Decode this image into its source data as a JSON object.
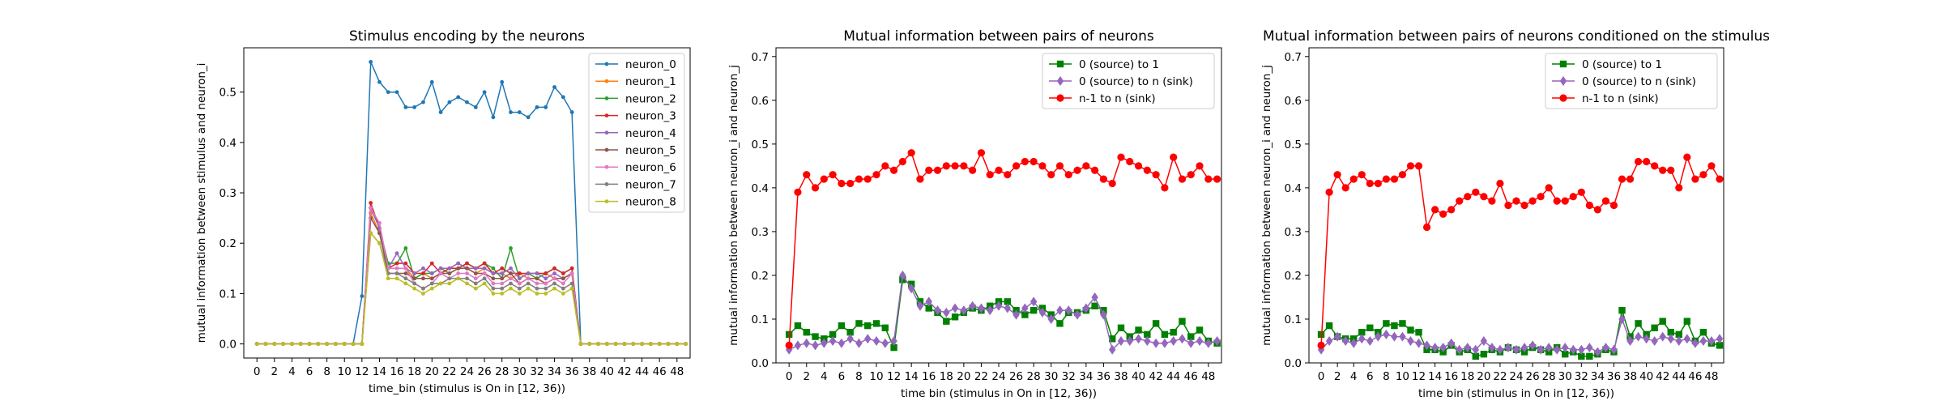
{
  "chart_data": [
    {
      "type": "line",
      "title": "Stimulus encoding by the neurons",
      "xlabel": "time_bin (stimulus is On in [12, 36))",
      "ylabel": "mutual information between stimulus and neuron_i",
      "xlim": [
        -1.5,
        49.5
      ],
      "ylim": [
        -0.028,
        0.588
      ],
      "xticks": [
        0,
        2,
        4,
        6,
        8,
        10,
        12,
        14,
        16,
        18,
        20,
        22,
        24,
        26,
        28,
        30,
        32,
        34,
        36,
        38,
        40,
        42,
        44,
        46,
        48
      ],
      "yticks": [
        0.0,
        0.1,
        0.2,
        0.3,
        0.4,
        0.5
      ],
      "ytick_labels": [
        "0.0",
        "0.1",
        "0.2",
        "0.3",
        "0.4",
        "0.5"
      ],
      "legend_position": "upper right",
      "series": [
        {
          "name": "neuron_0",
          "color": "#1f77b4",
          "marker": "dot",
          "values": [
            0,
            0,
            0,
            0,
            0,
            0,
            0,
            0,
            0,
            0,
            0,
            0,
            0.095,
            0.56,
            0.52,
            0.5,
            0.5,
            0.47,
            0.47,
            0.48,
            0.52,
            0.46,
            0.48,
            0.49,
            0.48,
            0.47,
            0.5,
            0.45,
            0.52,
            0.46,
            0.46,
            0.45,
            0.47,
            0.47,
            0.51,
            0.49,
            0.46,
            0,
            0,
            0,
            0,
            0,
            0,
            0,
            0,
            0,
            0,
            0,
            0,
            0
          ]
        },
        {
          "name": "neuron_1",
          "color": "#ff7f0e",
          "marker": "dot",
          "values": [
            0,
            0,
            0,
            0,
            0,
            0,
            0,
            0,
            0,
            0,
            0,
            0,
            0,
            0.26,
            0.22,
            0.15,
            0.15,
            0.15,
            0.13,
            0.14,
            0.13,
            0.14,
            0.15,
            0.16,
            0.15,
            0.14,
            0.15,
            0.14,
            0.14,
            0.13,
            0.14,
            0.13,
            0.13,
            0.14,
            0.13,
            0.13,
            0.14,
            0,
            0,
            0,
            0,
            0,
            0,
            0,
            0,
            0,
            0,
            0,
            0,
            0
          ]
        },
        {
          "name": "neuron_2",
          "color": "#2ca02c",
          "marker": "dot",
          "values": [
            0,
            0,
            0,
            0,
            0,
            0,
            0,
            0,
            0,
            0,
            0,
            0,
            0,
            0.27,
            0.23,
            0.16,
            0.16,
            0.19,
            0.13,
            0.14,
            0.14,
            0.15,
            0.14,
            0.15,
            0.16,
            0.15,
            0.16,
            0.15,
            0.13,
            0.19,
            0.13,
            0.14,
            0.13,
            0.14,
            0.15,
            0.14,
            0.15,
            0,
            0,
            0,
            0,
            0,
            0,
            0,
            0,
            0,
            0,
            0,
            0,
            0
          ]
        },
        {
          "name": "neuron_3",
          "color": "#d62728",
          "marker": "dot",
          "values": [
            0,
            0,
            0,
            0,
            0,
            0,
            0,
            0,
            0,
            0,
            0,
            0,
            0,
            0.28,
            0.23,
            0.15,
            0.16,
            0.16,
            0.14,
            0.14,
            0.16,
            0.14,
            0.15,
            0.15,
            0.16,
            0.15,
            0.16,
            0.14,
            0.15,
            0.14,
            0.14,
            0.14,
            0.14,
            0.14,
            0.15,
            0.14,
            0.15,
            0,
            0,
            0,
            0,
            0,
            0,
            0,
            0,
            0,
            0,
            0,
            0,
            0
          ]
        },
        {
          "name": "neuron_4",
          "color": "#9467bd",
          "marker": "dot",
          "values": [
            0,
            0,
            0,
            0,
            0,
            0,
            0,
            0,
            0,
            0,
            0,
            0,
            0,
            0.27,
            0.23,
            0.15,
            0.18,
            0.15,
            0.14,
            0.15,
            0.14,
            0.15,
            0.15,
            0.16,
            0.15,
            0.15,
            0.15,
            0.14,
            0.14,
            0.15,
            0.13,
            0.14,
            0.14,
            0.13,
            0.14,
            0.13,
            0.14,
            0,
            0,
            0,
            0,
            0,
            0,
            0,
            0,
            0,
            0,
            0,
            0,
            0
          ]
        },
        {
          "name": "neuron_5",
          "color": "#8c564b",
          "marker": "dot",
          "values": [
            0,
            0,
            0,
            0,
            0,
            0,
            0,
            0,
            0,
            0,
            0,
            0,
            0,
            0.25,
            0.22,
            0.14,
            0.14,
            0.14,
            0.13,
            0.13,
            0.13,
            0.14,
            0.14,
            0.15,
            0.15,
            0.14,
            0.14,
            0.13,
            0.13,
            0.14,
            0.12,
            0.13,
            0.13,
            0.12,
            0.13,
            0.13,
            0.14,
            0,
            0,
            0,
            0,
            0,
            0,
            0,
            0,
            0,
            0,
            0,
            0,
            0
          ]
        },
        {
          "name": "neuron_6",
          "color": "#e377c2",
          "marker": "dot",
          "values": [
            0,
            0,
            0,
            0,
            0,
            0,
            0,
            0,
            0,
            0,
            0,
            0,
            0,
            0.27,
            0.24,
            0.15,
            0.15,
            0.15,
            0.12,
            0.11,
            0.12,
            0.14,
            0.13,
            0.14,
            0.14,
            0.13,
            0.14,
            0.12,
            0.12,
            0.13,
            0.12,
            0.13,
            0.12,
            0.12,
            0.13,
            0.12,
            0.14,
            0,
            0,
            0,
            0,
            0,
            0,
            0,
            0,
            0,
            0,
            0,
            0,
            0
          ]
        },
        {
          "name": "neuron_7",
          "color": "#7f7f7f",
          "marker": "dot",
          "values": [
            0,
            0,
            0,
            0,
            0,
            0,
            0,
            0,
            0,
            0,
            0,
            0,
            0,
            0.22,
            0.2,
            0.14,
            0.14,
            0.13,
            0.12,
            0.11,
            0.12,
            0.12,
            0.13,
            0.13,
            0.13,
            0.12,
            0.13,
            0.11,
            0.11,
            0.12,
            0.11,
            0.12,
            0.11,
            0.11,
            0.12,
            0.11,
            0.12,
            0,
            0,
            0,
            0,
            0,
            0,
            0,
            0,
            0,
            0,
            0,
            0,
            0
          ]
        },
        {
          "name": "neuron_8",
          "color": "#bcbd22",
          "marker": "dot",
          "values": [
            0,
            0,
            0,
            0,
            0,
            0,
            0,
            0,
            0,
            0,
            0,
            0,
            0,
            0.22,
            0.2,
            0.13,
            0.13,
            0.12,
            0.11,
            0.1,
            0.11,
            0.12,
            0.12,
            0.13,
            0.12,
            0.11,
            0.12,
            0.1,
            0.1,
            0.11,
            0.1,
            0.11,
            0.1,
            0.1,
            0.11,
            0.1,
            0.11,
            0,
            0,
            0,
            0,
            0,
            0,
            0,
            0,
            0,
            0,
            0,
            0,
            0
          ]
        }
      ]
    },
    {
      "type": "line",
      "title": "Mutual information between pairs of neurons",
      "xlabel": "time bin (stimulus in On in [12, 36))",
      "ylabel": "mutual information between neuron_i and neuron_j",
      "xlim": [
        -1.5,
        49.5
      ],
      "ylim": [
        0,
        0.72
      ],
      "xticks": [
        0,
        2,
        4,
        6,
        8,
        10,
        12,
        14,
        16,
        18,
        20,
        22,
        24,
        26,
        28,
        30,
        32,
        34,
        36,
        38,
        40,
        42,
        44,
        46,
        48
      ],
      "yticks": [
        0.0,
        0.1,
        0.2,
        0.3,
        0.4,
        0.5,
        0.6,
        0.7
      ],
      "ytick_labels": [
        "0.0",
        "0.1",
        "0.2",
        "0.3",
        "0.4",
        "0.5",
        "0.6",
        "0.7"
      ],
      "legend_position": "upper right",
      "series": [
        {
          "name": "0 (source) to 1",
          "color": "#008000",
          "marker": "square",
          "values": [
            0.065,
            0.085,
            0.07,
            0.06,
            0.055,
            0.065,
            0.085,
            0.07,
            0.09,
            0.085,
            0.09,
            0.08,
            0.035,
            0.19,
            0.18,
            0.14,
            0.125,
            0.115,
            0.095,
            0.105,
            0.115,
            0.125,
            0.12,
            0.13,
            0.14,
            0.14,
            0.12,
            0.11,
            0.12,
            0.125,
            0.11,
            0.09,
            0.115,
            0.115,
            0.12,
            0.13,
            0.12,
            0.055,
            0.08,
            0.06,
            0.075,
            0.065,
            0.09,
            0.065,
            0.07,
            0.095,
            0.06,
            0.075,
            0.05,
            0.045
          ]
        },
        {
          "name": "0 (source) to n (sink)",
          "color": "#9467bd",
          "marker": "diamond",
          "values": [
            0.03,
            0.04,
            0.045,
            0.04,
            0.045,
            0.05,
            0.045,
            0.055,
            0.045,
            0.055,
            0.05,
            0.045,
            0.05,
            0.2,
            0.17,
            0.13,
            0.14,
            0.12,
            0.115,
            0.125,
            0.12,
            0.13,
            0.125,
            0.12,
            0.13,
            0.125,
            0.11,
            0.125,
            0.14,
            0.115,
            0.1,
            0.12,
            0.12,
            0.11,
            0.125,
            0.15,
            0.11,
            0.03,
            0.05,
            0.05,
            0.055,
            0.05,
            0.045,
            0.045,
            0.05,
            0.055,
            0.045,
            0.05,
            0.045,
            0.05
          ]
        },
        {
          "name": "n-1 to n (sink)",
          "color": "#ff0000",
          "marker": "circle",
          "values": [
            0.04,
            0.39,
            0.43,
            0.4,
            0.42,
            0.43,
            0.41,
            0.41,
            0.42,
            0.42,
            0.43,
            0.45,
            0.44,
            0.46,
            0.48,
            0.42,
            0.44,
            0.44,
            0.45,
            0.45,
            0.45,
            0.44,
            0.48,
            0.43,
            0.44,
            0.43,
            0.45,
            0.46,
            0.46,
            0.45,
            0.43,
            0.45,
            0.43,
            0.44,
            0.45,
            0.44,
            0.42,
            0.41,
            0.47,
            0.46,
            0.45,
            0.44,
            0.43,
            0.4,
            0.47,
            0.42,
            0.43,
            0.45,
            0.42,
            0.42
          ]
        }
      ]
    },
    {
      "type": "line",
      "title": "Mutual information between pairs of neurons conditioned on the stimulus",
      "xlabel": "time bin (stimulus in On in [12, 36))",
      "ylabel": "mutual information between neuron_i and neuron_j",
      "xlim": [
        -1.5,
        49.5
      ],
      "ylim": [
        0,
        0.72
      ],
      "xticks": [
        0,
        2,
        4,
        6,
        8,
        10,
        12,
        14,
        16,
        18,
        20,
        22,
        24,
        26,
        28,
        30,
        32,
        34,
        36,
        38,
        40,
        42,
        44,
        46,
        48
      ],
      "yticks": [
        0.0,
        0.1,
        0.2,
        0.3,
        0.4,
        0.5,
        0.6,
        0.7
      ],
      "ytick_labels": [
        "0.0",
        "0.1",
        "0.2",
        "0.3",
        "0.4",
        "0.5",
        "0.6",
        "0.7"
      ],
      "legend_position": "upper right",
      "series": [
        {
          "name": "0 (source) to 1",
          "color": "#008000",
          "marker": "square",
          "values": [
            0.065,
            0.085,
            0.06,
            0.055,
            0.055,
            0.07,
            0.08,
            0.07,
            0.09,
            0.085,
            0.09,
            0.075,
            0.07,
            0.03,
            0.03,
            0.025,
            0.04,
            0.025,
            0.03,
            0.015,
            0.02,
            0.03,
            0.025,
            0.035,
            0.03,
            0.025,
            0.035,
            0.03,
            0.025,
            0.035,
            0.02,
            0.025,
            0.015,
            0.015,
            0.02,
            0.03,
            0.025,
            0.12,
            0.06,
            0.09,
            0.065,
            0.08,
            0.095,
            0.07,
            0.065,
            0.095,
            0.05,
            0.07,
            0.045,
            0.04
          ]
        },
        {
          "name": "0 (source) to n (sink)",
          "color": "#9467bd",
          "marker": "diamond",
          "values": [
            0.03,
            0.05,
            0.06,
            0.05,
            0.045,
            0.055,
            0.05,
            0.06,
            0.065,
            0.06,
            0.06,
            0.05,
            0.045,
            0.04,
            0.035,
            0.035,
            0.045,
            0.03,
            0.035,
            0.03,
            0.05,
            0.035,
            0.03,
            0.035,
            0.03,
            0.035,
            0.04,
            0.03,
            0.035,
            0.03,
            0.035,
            0.03,
            0.03,
            0.035,
            0.025,
            0.035,
            0.03,
            0.1,
            0.05,
            0.06,
            0.055,
            0.05,
            0.06,
            0.055,
            0.05,
            0.055,
            0.045,
            0.05,
            0.05,
            0.055
          ]
        },
        {
          "name": "n-1 to n (sink)",
          "color": "#ff0000",
          "marker": "circle",
          "values": [
            0.04,
            0.39,
            0.43,
            0.4,
            0.42,
            0.43,
            0.41,
            0.41,
            0.42,
            0.42,
            0.43,
            0.45,
            0.45,
            0.31,
            0.35,
            0.34,
            0.35,
            0.37,
            0.38,
            0.39,
            0.38,
            0.37,
            0.41,
            0.36,
            0.37,
            0.36,
            0.37,
            0.38,
            0.4,
            0.37,
            0.37,
            0.38,
            0.39,
            0.36,
            0.35,
            0.37,
            0.36,
            0.42,
            0.42,
            0.46,
            0.46,
            0.45,
            0.44,
            0.44,
            0.4,
            0.47,
            0.42,
            0.43,
            0.45,
            0.42
          ]
        }
      ]
    }
  ]
}
